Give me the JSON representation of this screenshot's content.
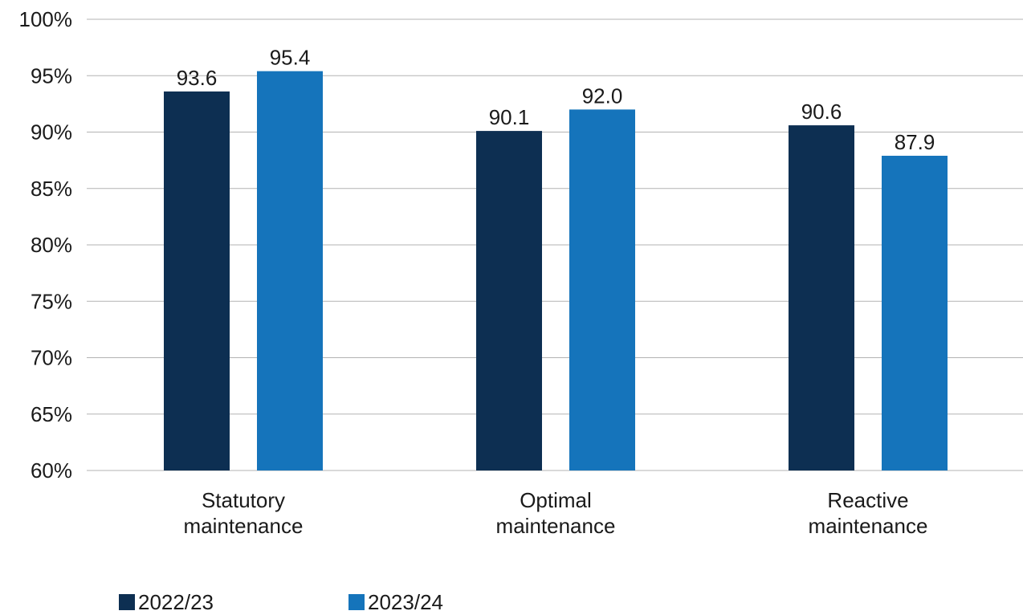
{
  "chart_data": {
    "type": "bar",
    "categories": [
      [
        "Statutory",
        "maintenance"
      ],
      [
        "Optimal",
        "maintenance"
      ],
      [
        "Reactive",
        "maintenance"
      ]
    ],
    "series": [
      {
        "name": "2022/23",
        "values": [
          93.6,
          90.1,
          90.6
        ],
        "labels": [
          "93.6",
          "90.1",
          "90.6"
        ],
        "color": "#0d2f52"
      },
      {
        "name": "2023/24",
        "values": [
          95.4,
          92.0,
          87.9
        ],
        "labels": [
          "95.4",
          "92.0",
          "87.9"
        ],
        "color": "#1574bb"
      }
    ],
    "ylim": [
      60,
      100
    ],
    "yticks": [
      "60%",
      "65%",
      "70%",
      "75%",
      "80%",
      "85%",
      "90%",
      "95%",
      "100%"
    ],
    "ytick_values": [
      60,
      65,
      70,
      75,
      80,
      85,
      90,
      95,
      100
    ],
    "grid": true,
    "gridline_color": "#b3b3b3",
    "legend_position": "bottom-left",
    "title": "",
    "xlabel": "",
    "ylabel": ""
  }
}
